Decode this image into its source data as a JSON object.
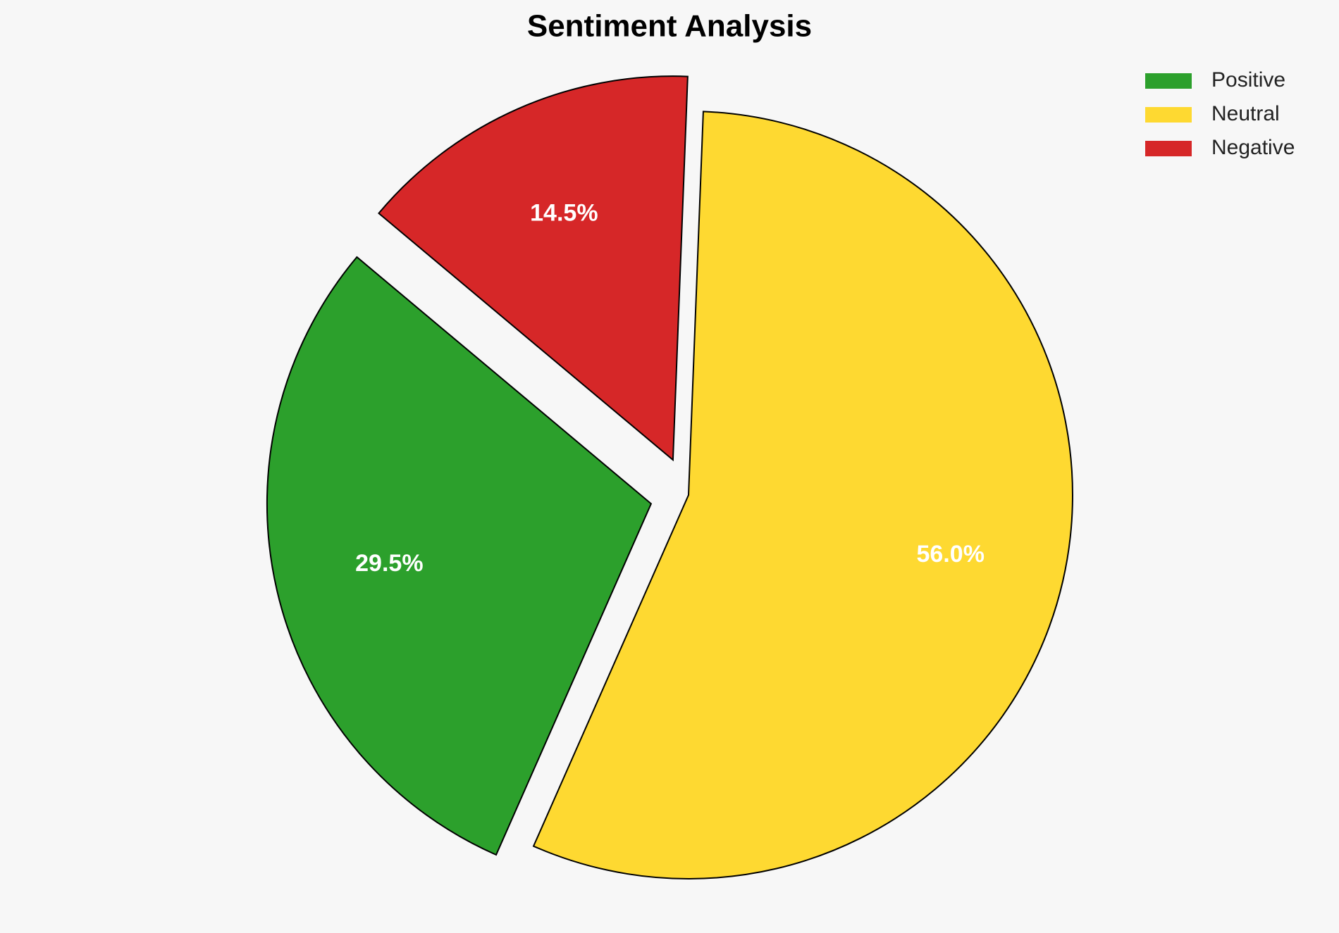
{
  "chart_data": {
    "type": "pie",
    "title": "Sentiment Analysis",
    "categories": [
      "Positive",
      "Neutral",
      "Negative"
    ],
    "values": [
      29.5,
      56.0,
      14.5
    ],
    "value_labels": [
      "29.5%",
      "56.0%",
      "14.5%"
    ],
    "colors": [
      "#2ca02c",
      "#fed931",
      "#d62728"
    ],
    "explode": [
      0.1,
      0,
      0.1
    ],
    "startangle": 140,
    "legend": "upper right"
  }
}
